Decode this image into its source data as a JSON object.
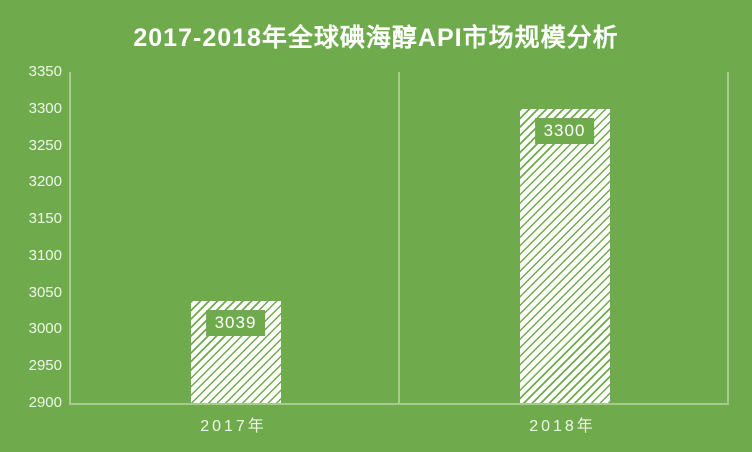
{
  "title": "2017-2018年全球碘海醇API市场规模分析",
  "colors": {
    "background": "#6fab4c",
    "gridline": "#a8ca8e",
    "title_text": "#ffffff",
    "axis_text": "#f0f6ea",
    "bar_fill": "#ffffff",
    "bar_hatch": "#6fab4c",
    "value_label_bg": "#6fab4c",
    "value_label_text": "#ffffff"
  },
  "chart_data": {
    "type": "bar",
    "title": "2017-2018年全球碘海醇API市场规模分析",
    "categories": [
      "2017年",
      "2018年"
    ],
    "values": [
      3039,
      3300
    ],
    "value_labels": [
      "3039",
      "3300"
    ],
    "xlabel": "",
    "ylabel": "",
    "ylim": [
      2900,
      3350
    ],
    "yticks": [
      2900,
      2950,
      3000,
      3050,
      3100,
      3150,
      3200,
      3250,
      3300,
      3350
    ],
    "grid": "vertical category gridlines only",
    "legend": "none",
    "bar_style": "white fill with thin diagonal green hatch lines, value label in green box near bar top"
  }
}
